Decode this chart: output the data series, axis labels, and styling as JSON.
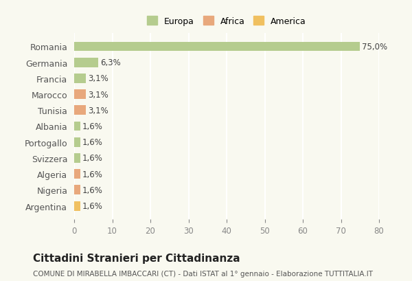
{
  "categories": [
    "Romania",
    "Germania",
    "Francia",
    "Marocco",
    "Tunisia",
    "Albania",
    "Portogallo",
    "Svizzera",
    "Algeria",
    "Nigeria",
    "Argentina"
  ],
  "values": [
    75.0,
    6.3,
    3.1,
    3.1,
    3.1,
    1.6,
    1.6,
    1.6,
    1.6,
    1.6,
    1.6
  ],
  "labels": [
    "75,0%",
    "6,3%",
    "3,1%",
    "3,1%",
    "3,1%",
    "1,6%",
    "1,6%",
    "1,6%",
    "1,6%",
    "1,6%",
    "1,6%"
  ],
  "colors": [
    "#b5cc8e",
    "#b5cc8e",
    "#b5cc8e",
    "#e8a87c",
    "#e8a87c",
    "#b5cc8e",
    "#b5cc8e",
    "#b5cc8e",
    "#e8a87c",
    "#e8a87c",
    "#f0c060"
  ],
  "continent": [
    "Europa",
    "Europa",
    "Europa",
    "Africa",
    "Africa",
    "Europa",
    "Europa",
    "Europa",
    "Africa",
    "Africa",
    "America"
  ],
  "legend_labels": [
    "Europa",
    "Africa",
    "America"
  ],
  "legend_colors": [
    "#b5cc8e",
    "#e8a87c",
    "#f0c060"
  ],
  "title": "Cittadini Stranieri per Cittadinanza",
  "subtitle": "COMUNE DI MIRABELLA IMBACCARI (CT) - Dati ISTAT al 1° gennaio - Elaborazione TUTTITALIA.IT",
  "xlim": [
    0,
    80
  ],
  "xticks": [
    0,
    10,
    20,
    30,
    40,
    50,
    60,
    70,
    80
  ],
  "background_color": "#f9f9f0",
  "grid_color": "#ffffff"
}
